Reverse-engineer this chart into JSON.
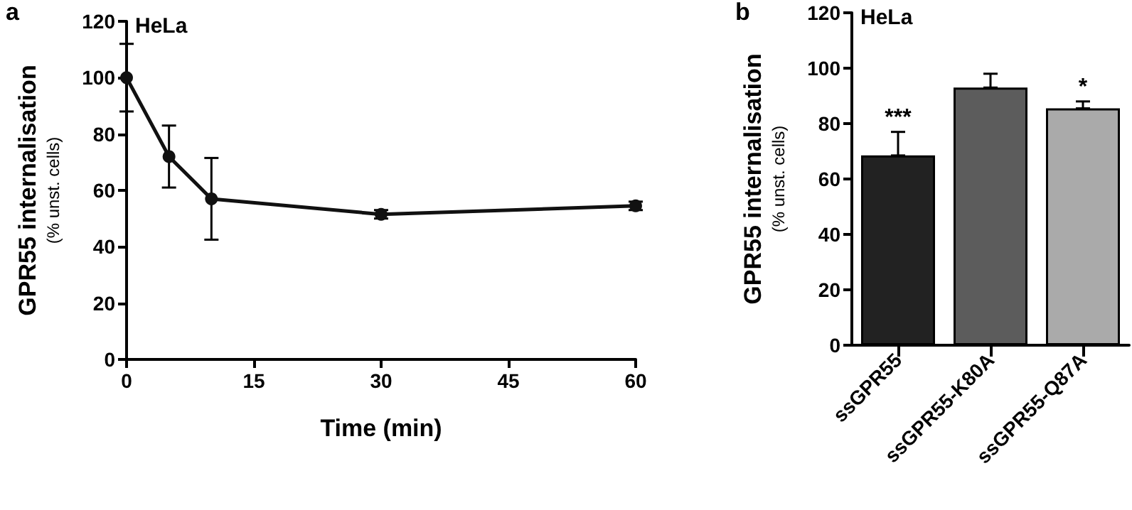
{
  "chart_data": [
    {
      "type": "line",
      "ylabel": "GPR55 internalisation\n(% unst. cells)",
      "xlabel": "Time (min)",
      "annotations": [
        "a",
        "HeLa"
      ],
      "x": [
        0,
        5,
        10,
        30,
        60
      ],
      "series": [
        {
          "color": "#111111",
          "values": [
            100,
            72,
            57,
            51.5,
            54.5
          ],
          "errors": [
            12,
            11,
            14.5,
            1.5,
            1.5
          ]
        }
      ],
      "xlim": [
        0,
        60
      ],
      "xticks": [
        0,
        15,
        30,
        45,
        60
      ],
      "ylim": [
        0,
        120
      ],
      "yticks": [
        0,
        20,
        40,
        60,
        80,
        100,
        120
      ],
      "marker": "circle",
      "line_style": "solid"
    },
    {
      "type": "bar",
      "ylabel": "GPR55 internalisation\n(% unst. cells)",
      "annotations": [
        "b",
        "HeLa",
        {
          "text": "***",
          "x": "ssGPR55",
          "y": 77
        },
        {
          "text": "*",
          "x": "ssGPR55-Q87A",
          "y": 88
        }
      ],
      "categories": [
        "ssGPR55",
        "ssGPR55-K80A",
        "ssGPR55-Q87A"
      ],
      "values": [
        68.5,
        93,
        85.5
      ],
      "colors": [
        "#222222",
        "#5c5c5c",
        "#aaaaaa"
      ],
      "errors": [
        [
          68.5,
          77
        ],
        [
          93,
          98
        ],
        [
          85.5,
          88
        ]
      ],
      "ylim": [
        0,
        120
      ],
      "yticks": [
        0,
        20,
        40,
        60,
        80,
        100,
        120
      ]
    }
  ]
}
